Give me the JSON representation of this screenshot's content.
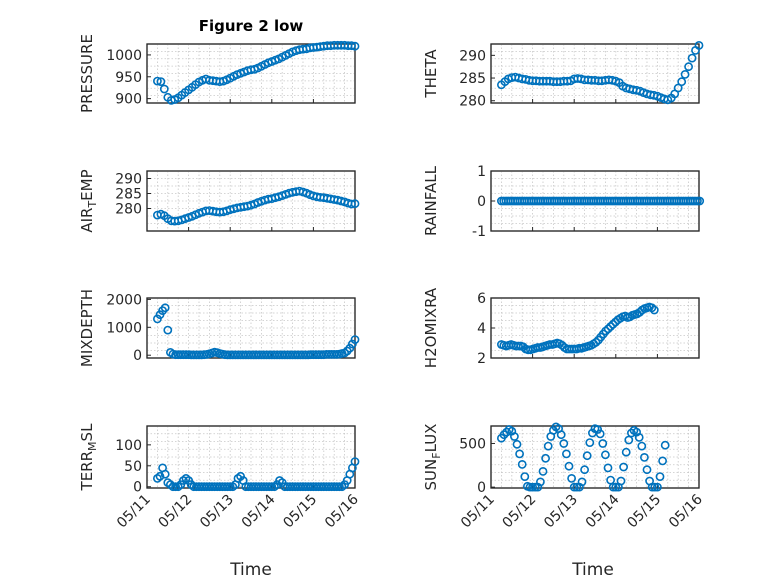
{
  "figure": {
    "title": "Figure 2 low",
    "xlabel": "Time"
  },
  "colors": {
    "marker": "#0072BD",
    "axes": "#262626",
    "grid": "#c8c8c8"
  },
  "chart_data": [
    {
      "type": "scatter",
      "title": "Figure 2 low",
      "ylabel": "PRESSURE",
      "xlim": [
        "05/11",
        "05/16"
      ],
      "ylim": [
        890,
        1025
      ],
      "yticks": [
        900,
        950,
        1000
      ],
      "xticks": [
        "05/11",
        "05/12",
        "05/13",
        "05/14",
        "05/15",
        "05/16"
      ],
      "x_start": "05/11 06:00",
      "x_step_hours": 2,
      "grid": "minor",
      "values": [
        940,
        939,
        922,
        903,
        896,
        898,
        902,
        908,
        914,
        920,
        926,
        932,
        938,
        942,
        945,
        942,
        941,
        940,
        939,
        940,
        943,
        947,
        951,
        955,
        958,
        961,
        964,
        966,
        967,
        970,
        974,
        978,
        982,
        985,
        988,
        991,
        995,
        999,
        1003,
        1007,
        1010,
        1012,
        1013,
        1014,
        1016,
        1017,
        1018,
        1019,
        1020,
        1021,
        1021,
        1022,
        1022,
        1022,
        1022,
        1021,
        1021,
        1020,
        1018,
        1014,
        1009,
        1003,
        998,
        995
      ]
    },
    {
      "type": "scatter",
      "ylabel": "THETA",
      "xlim": [
        "05/11",
        "05/16"
      ],
      "ylim": [
        279.5,
        292.5
      ],
      "yticks": [
        280,
        285,
        290
      ],
      "xticks": [
        "05/11",
        "05/12",
        "05/13",
        "05/14",
        "05/15",
        "05/16"
      ],
      "x_start": "05/11 06:00",
      "x_step_hours": 2,
      "grid": "minor",
      "values": [
        283.5,
        284.2,
        284.8,
        285.1,
        285.2,
        285.0,
        284.8,
        284.7,
        284.5,
        284.4,
        284.4,
        284.3,
        284.3,
        284.3,
        284.3,
        284.2,
        284.2,
        284.2,
        284.3,
        284.3,
        284.4,
        284.8,
        284.9,
        284.8,
        284.6,
        284.6,
        284.5,
        284.5,
        284.4,
        284.4,
        284.5,
        284.6,
        284.5,
        284.3,
        284.0,
        283.2,
        282.8,
        282.6,
        282.4,
        282.3,
        282.1,
        281.8,
        281.5,
        281.3,
        281.2,
        281.0,
        280.7,
        280.4,
        280.2,
        280.6,
        281.5,
        282.8,
        284.2,
        285.8,
        287.5,
        289.4,
        291.1,
        292.2
      ]
    },
    {
      "type": "scatter",
      "ylabel": "AIR_TEMP",
      "xlim": [
        "05/11",
        "05/16"
      ],
      "ylim": [
        272.5,
        292.5
      ],
      "yticks": [
        280,
        285,
        290
      ],
      "xticks": [
        "05/11",
        "05/12",
        "05/13",
        "05/14",
        "05/15",
        "05/16"
      ],
      "x_start": "05/11 06:00",
      "x_step_hours": 2,
      "grid": "minor",
      "values": [
        277.8,
        278.1,
        277.6,
        276.6,
        275.9,
        275.8,
        275.9,
        276.2,
        276.6,
        277.0,
        277.4,
        277.9,
        278.4,
        278.8,
        279.2,
        279.3,
        279.1,
        278.9,
        278.8,
        278.9,
        279.2,
        279.6,
        279.9,
        280.2,
        280.4,
        280.6,
        280.8,
        281.1,
        281.5,
        282.0,
        282.4,
        282.8,
        283.1,
        283.3,
        283.6,
        283.9,
        284.3,
        284.7,
        285.1,
        285.4,
        285.6,
        285.8,
        285.5,
        285.1,
        284.6,
        284.2,
        283.9,
        283.7,
        283.6,
        283.4,
        283.2,
        283.0,
        282.8,
        282.5,
        282.2,
        281.8,
        281.5,
        281.6,
        282.2,
        283.2,
        284.5,
        286.0,
        287.2,
        288.3,
        289.4,
        290.4,
        291.0
      ]
    },
    {
      "type": "scatter",
      "ylabel": "RAINFALL",
      "xlim": [
        "05/11",
        "05/16"
      ],
      "ylim": [
        -1,
        1
      ],
      "yticks": [
        -1,
        0,
        1
      ],
      "xticks": [
        "05/11",
        "05/12",
        "05/13",
        "05/14",
        "05/15",
        "05/16"
      ],
      "x_start": "05/11 06:00",
      "x_step_hours": 1.33,
      "grid": "minor",
      "values": [
        0,
        0,
        0,
        0,
        0,
        0,
        0,
        0,
        0,
        0,
        0,
        0,
        0,
        0,
        0,
        0,
        0,
        0,
        0,
        0,
        0,
        0,
        0,
        0,
        0,
        0,
        0,
        0,
        0,
        0,
        0,
        0,
        0,
        0,
        0,
        0,
        0,
        0,
        0,
        0,
        0,
        0,
        0,
        0,
        0,
        0,
        0,
        0,
        0,
        0,
        0,
        0,
        0,
        0,
        0,
        0,
        0,
        0,
        0,
        0,
        0,
        0,
        0,
        0,
        0,
        0,
        0,
        0,
        0,
        0,
        0,
        0,
        0,
        0,
        0,
        0,
        0,
        0,
        0,
        0,
        0,
        0,
        0,
        0,
        0,
        0,
        0,
        0,
        0,
        0,
        0,
        0,
        0
      ]
    },
    {
      "type": "scatter",
      "ylabel": "MIXDEPTH",
      "xlim": [
        "05/11",
        "05/16"
      ],
      "ylim": [
        -100,
        2050
      ],
      "yticks": [
        0,
        1000,
        2000
      ],
      "xticks": [
        "05/11",
        "05/12",
        "05/13",
        "05/14",
        "05/15",
        "05/16"
      ],
      "x_start": "05/11 06:00",
      "x_step_hours": 1.5,
      "grid": "minor",
      "values": [
        1300,
        1450,
        1600,
        1700,
        900,
        100,
        40,
        20,
        20,
        20,
        20,
        20,
        20,
        10,
        10,
        10,
        10,
        10,
        20,
        30,
        50,
        80,
        110,
        90,
        60,
        40,
        20,
        10,
        10,
        10,
        10,
        10,
        10,
        10,
        10,
        10,
        10,
        10,
        10,
        10,
        10,
        10,
        10,
        10,
        10,
        10,
        10,
        10,
        10,
        10,
        10,
        10,
        10,
        10,
        10,
        10,
        10,
        10,
        10,
        20,
        20,
        20,
        20,
        20,
        20,
        30,
        30,
        30,
        30,
        30,
        40,
        60,
        80,
        150,
        250,
        400,
        560,
        720,
        880,
        1020
      ]
    },
    {
      "type": "scatter",
      "ylabel": "H2OMIXRA",
      "xlim": [
        "05/11",
        "05/16"
      ],
      "ylim": [
        2,
        6
      ],
      "yticks": [
        2,
        4,
        6
      ],
      "xticks": [
        "05/11",
        "05/12",
        "05/13",
        "05/14",
        "05/15",
        "05/16"
      ],
      "x_start": "05/11 06:00",
      "x_step_hours": 1.4,
      "grid": "minor",
      "values": [
        2.9,
        2.85,
        2.8,
        2.85,
        2.9,
        2.85,
        2.8,
        2.8,
        2.8,
        2.75,
        2.6,
        2.55,
        2.55,
        2.6,
        2.65,
        2.7,
        2.7,
        2.75,
        2.8,
        2.85,
        2.9,
        2.9,
        2.95,
        3.0,
        2.95,
        2.85,
        2.7,
        2.6,
        2.6,
        2.6,
        2.6,
        2.6,
        2.65,
        2.65,
        2.7,
        2.75,
        2.8,
        2.85,
        2.95,
        3.05,
        3.2,
        3.4,
        3.6,
        3.8,
        3.95,
        4.1,
        4.25,
        4.4,
        4.55,
        4.65,
        4.75,
        4.8,
        4.7,
        4.75,
        4.85,
        4.9,
        4.95,
        5.05,
        5.2,
        5.3,
        5.35,
        5.4,
        5.35,
        5.2
      ]
    },
    {
      "type": "scatter",
      "ylabel": "TERR_MSL",
      "xlim": [
        "05/11",
        "05/16"
      ],
      "ylim": [
        -3,
        145
      ],
      "yticks": [
        0,
        50,
        100
      ],
      "xticks": [
        "05/11",
        "05/12",
        "05/13",
        "05/14",
        "05/15",
        "05/16"
      ],
      "x_start": "05/11 06:00",
      "x_step_hours": 1.5,
      "grid": "minor",
      "values": [
        20,
        25,
        45,
        30,
        10,
        5,
        0,
        0,
        0,
        5,
        15,
        20,
        15,
        5,
        0,
        0,
        0,
        0,
        0,
        0,
        0,
        0,
        0,
        0,
        0,
        0,
        0,
        0,
        0,
        0,
        5,
        20,
        25,
        15,
        0,
        0,
        0,
        0,
        0,
        0,
        0,
        0,
        0,
        0,
        0,
        0,
        5,
        15,
        10,
        0,
        0,
        0,
        0,
        0,
        0,
        0,
        0,
        0,
        0,
        0,
        0,
        0,
        0,
        0,
        0,
        0,
        0,
        0,
        0,
        0,
        0,
        0,
        5,
        15,
        30,
        45,
        60,
        80,
        100,
        120,
        140
      ]
    },
    {
      "type": "scatter",
      "ylabel": "SUN_FLUX",
      "xlim": [
        "05/11",
        "05/16"
      ],
      "ylim": [
        -10,
        700
      ],
      "yticks": [
        0,
        500
      ],
      "xticks": [
        "05/11",
        "05/12",
        "05/13",
        "05/14",
        "05/15",
        "05/16"
      ],
      "x_start": "05/11 06:00",
      "x_step_hours": 1.5,
      "grid": "minor",
      "values": [
        560,
        600,
        630,
        660,
        640,
        580,
        490,
        380,
        260,
        120,
        10,
        0,
        0,
        0,
        0,
        60,
        180,
        330,
        470,
        580,
        650,
        690,
        670,
        600,
        500,
        380,
        240,
        100,
        0,
        0,
        0,
        60,
        200,
        360,
        510,
        620,
        670,
        660,
        610,
        500,
        370,
        220,
        80,
        0,
        0,
        0,
        70,
        230,
        400,
        540,
        620,
        650,
        630,
        570,
        470,
        340,
        200,
        70,
        0,
        0,
        0,
        120,
        300,
        480
      ]
    }
  ]
}
